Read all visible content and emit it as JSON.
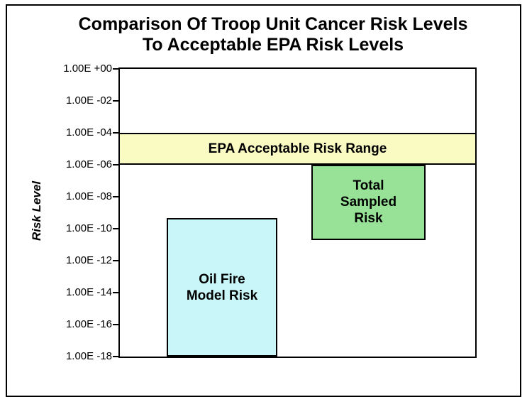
{
  "chart_data": {
    "type": "bar",
    "title": "Comparison Of Troop Unit Cancer Risk Levels To Acceptable EPA Risk Levels",
    "title_line1": "Comparison Of Troop Unit Cancer Risk Levels",
    "title_line2": "To Acceptable EPA Risk Levels",
    "xlabel": "",
    "ylabel": "Risk Level",
    "grid": false,
    "legend": false,
    "y_axis": {
      "scale": "log",
      "max_exp": 0,
      "min_exp": -18,
      "tick_labels": [
        "1.00E +00",
        "1.00E -02",
        "1.00E -04",
        "1.00E -06",
        "1.00E -08",
        "1.00E -10",
        "1.00E -12",
        "1.00E -14",
        "1.00E -16",
        "1.00E -18"
      ]
    },
    "band": {
      "label": "EPA Acceptable Risk Range",
      "value_range": "1.00E-06 to 1.00E-04",
      "max_exp": -4,
      "min_exp": -6,
      "color": "#FAFAC3"
    },
    "bars": [
      {
        "name": "Oil Fire Model Risk",
        "label_lines": [
          "Oil Fire",
          "Model Risk"
        ],
        "top_value": "4.5E-10",
        "bottom_value": "1.0E-18",
        "top_exp": -9.35,
        "bottom_exp": -18,
        "color": "#C9F6F8"
      },
      {
        "name": "Total Sampled Risk",
        "label_lines": [
          "Total",
          "Sampled",
          "Risk"
        ],
        "top_value": "1.0E-06",
        "bottom_value": "2.0E-11",
        "top_exp": -6,
        "bottom_exp": -10.7,
        "color": "#97E297"
      }
    ]
  }
}
